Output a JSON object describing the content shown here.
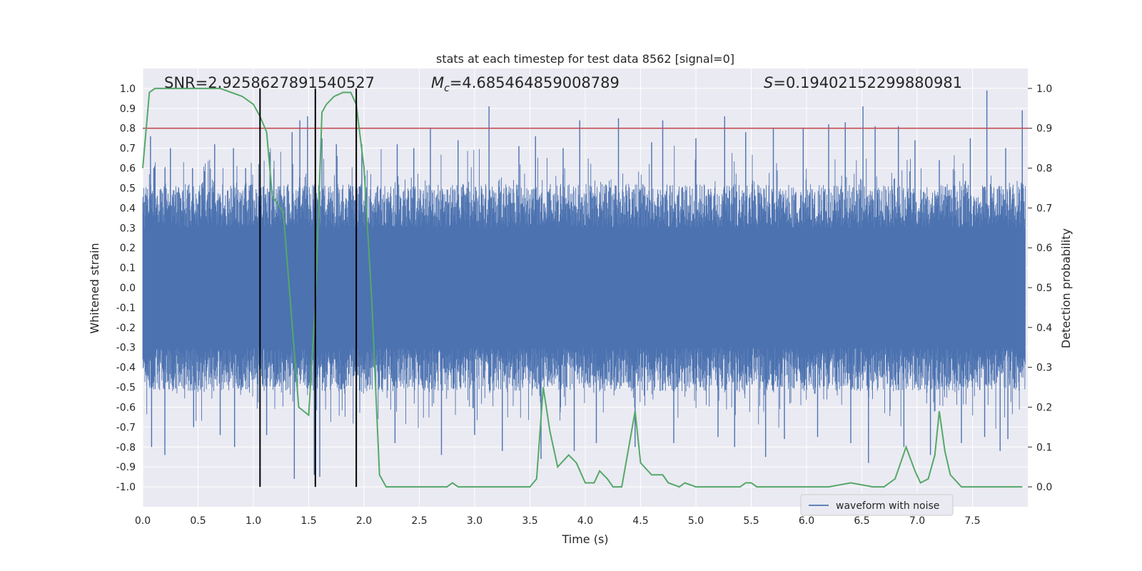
{
  "chart_data": {
    "type": "line",
    "title": "stats at each timestep for test data 8562 [signal=0]",
    "xlabel": "Time (s)",
    "ylabel": "Whitened strain",
    "y2label": "Detection probability",
    "xlim": [
      0.0,
      8.0
    ],
    "ylim": [
      -1.1,
      1.1
    ],
    "y2lim": [
      -0.05,
      1.05
    ],
    "x_ticks": [
      "0.0",
      "0.5",
      "1.0",
      "1.5",
      "2.0",
      "2.5",
      "3.0",
      "3.5",
      "4.0",
      "4.5",
      "5.0",
      "5.5",
      "6.0",
      "6.5",
      "7.0",
      "7.5"
    ],
    "y_ticks": [
      "1.0",
      "0.9",
      "0.8",
      "0.7",
      "0.6",
      "0.5",
      "0.4",
      "0.3",
      "0.2",
      "0.1",
      "0.0",
      "-0.1",
      "-0.2",
      "-0.3",
      "-0.4",
      "-0.5",
      "-0.6",
      "-0.7",
      "-0.8",
      "-0.9",
      "-1.0"
    ],
    "y2_ticks": [
      "1.0",
      "0.9",
      "0.8",
      "0.7",
      "0.6",
      "0.5",
      "0.4",
      "0.3",
      "0.2",
      "0.1",
      "0.0"
    ],
    "grid": true,
    "legend": {
      "position": "bottom-right",
      "entries": [
        "waveform with noise"
      ]
    },
    "annotations": {
      "snr_label": "SNR=2.9258627891540527",
      "mc_symbol": "M",
      "mc_sub": "c",
      "mc_value": "=4.685464859008789",
      "s_symbol": "S",
      "s_value": "=0.19402152299880981"
    },
    "threshold": {
      "axis": "right",
      "value": 0.9,
      "color": "#c44e52"
    },
    "vlines": {
      "x": [
        1.06,
        1.56,
        1.93
      ],
      "color": "#000000"
    },
    "waveform": {
      "name": "waveform with noise",
      "color": "#4c72b0",
      "core_amplitude": 0.3,
      "peak_spikes": [
        [
          0.07,
          0.76
        ],
        [
          0.1,
          0.6
        ],
        [
          0.25,
          0.7
        ],
        [
          0.45,
          0.6
        ],
        [
          0.65,
          0.72
        ],
        [
          0.82,
          0.7
        ],
        [
          0.93,
          0.6
        ],
        [
          1.15,
          0.68
        ],
        [
          1.35,
          0.78
        ],
        [
          1.42,
          0.84
        ],
        [
          1.49,
          0.86
        ],
        [
          1.62,
          0.75
        ],
        [
          1.75,
          0.72
        ],
        [
          1.98,
          0.72
        ],
        [
          2.3,
          0.72
        ],
        [
          2.45,
          0.7
        ],
        [
          2.6,
          0.8
        ],
        [
          2.85,
          0.74
        ],
        [
          3.13,
          0.91
        ],
        [
          3.4,
          0.71
        ],
        [
          3.55,
          0.76
        ],
        [
          3.8,
          0.7
        ],
        [
          3.95,
          0.84
        ],
        [
          4.3,
          0.85
        ],
        [
          4.6,
          0.73
        ],
        [
          4.7,
          0.84
        ],
        [
          5.0,
          0.75
        ],
        [
          5.26,
          0.86
        ],
        [
          5.45,
          0.78
        ],
        [
          5.7,
          0.8
        ],
        [
          5.97,
          0.8
        ],
        [
          6.2,
          0.82
        ],
        [
          6.35,
          0.83
        ],
        [
          6.51,
          0.91
        ],
        [
          6.62,
          0.81
        ],
        [
          6.83,
          0.81
        ],
        [
          6.98,
          0.74
        ],
        [
          7.2,
          0.64
        ],
        [
          7.48,
          0.75
        ],
        [
          7.63,
          0.99
        ],
        [
          7.8,
          0.7
        ],
        [
          7.95,
          0.89
        ]
      ],
      "trough_spikes": [
        [
          0.08,
          -0.8
        ],
        [
          0.2,
          -0.84
        ],
        [
          0.46,
          -0.7
        ],
        [
          0.7,
          -0.74
        ],
        [
          0.83,
          -0.8
        ],
        [
          1.12,
          -0.74
        ],
        [
          1.37,
          -0.96
        ],
        [
          1.55,
          -0.94
        ],
        [
          1.6,
          -0.95
        ],
        [
          1.93,
          -0.88
        ],
        [
          2.28,
          -0.78
        ],
        [
          2.7,
          -0.84
        ],
        [
          3.0,
          -0.74
        ],
        [
          3.25,
          -0.82
        ],
        [
          3.6,
          -0.86
        ],
        [
          3.9,
          -0.82
        ],
        [
          4.1,
          -0.78
        ],
        [
          4.45,
          -0.8
        ],
        [
          4.8,
          -0.78
        ],
        [
          5.2,
          -0.75
        ],
        [
          5.35,
          -0.8
        ],
        [
          5.63,
          -0.85
        ],
        [
          5.8,
          -0.76
        ],
        [
          6.1,
          -0.75
        ],
        [
          6.4,
          -0.78
        ],
        [
          6.56,
          -0.88
        ],
        [
          6.88,
          -0.8
        ],
        [
          7.12,
          -0.84
        ],
        [
          7.4,
          -0.78
        ],
        [
          7.61,
          -0.75
        ],
        [
          7.75,
          -0.82
        ],
        [
          7.82,
          -0.76
        ]
      ]
    },
    "detection_probability": {
      "color": "#55a868",
      "x": [
        0.0,
        0.06,
        0.11,
        0.3,
        0.5,
        0.7,
        0.8,
        0.9,
        1.0,
        1.06,
        1.12,
        1.17,
        1.27,
        1.41,
        1.5,
        1.56,
        1.62,
        1.66,
        1.73,
        1.81,
        1.88,
        1.93,
        2.0,
        2.07,
        2.14,
        2.2,
        2.4,
        2.6,
        2.75,
        2.8,
        2.85,
        2.95,
        3.2,
        3.5,
        3.56,
        3.62,
        3.68,
        3.75,
        3.85,
        3.92,
        4.0,
        4.08,
        4.13,
        4.2,
        4.25,
        4.33,
        4.4,
        4.45,
        4.5,
        4.6,
        4.7,
        4.75,
        4.85,
        4.9,
        5.0,
        5.2,
        5.3,
        5.4,
        5.45,
        5.5,
        5.55,
        5.7,
        5.95,
        6.2,
        6.4,
        6.6,
        6.7,
        6.8,
        6.9,
        6.98,
        7.03,
        7.1,
        7.16,
        7.2,
        7.25,
        7.3,
        7.4,
        7.6,
        7.8,
        7.95
      ],
      "y": [
        0.8,
        0.99,
        1.0,
        1.0,
        1.0,
        1.0,
        0.99,
        0.98,
        0.96,
        0.93,
        0.89,
        0.73,
        0.69,
        0.2,
        0.18,
        0.46,
        0.94,
        0.96,
        0.98,
        0.99,
        0.99,
        0.96,
        0.8,
        0.47,
        0.03,
        0.0,
        0.0,
        0.0,
        0.0,
        0.01,
        0.0,
        0.0,
        0.0,
        0.0,
        0.02,
        0.25,
        0.14,
        0.05,
        0.08,
        0.06,
        0.01,
        0.01,
        0.04,
        0.02,
        0.0,
        0.0,
        0.11,
        0.19,
        0.06,
        0.03,
        0.03,
        0.01,
        0.0,
        0.01,
        0.0,
        0.0,
        0.0,
        0.0,
        0.01,
        0.01,
        0.0,
        0.0,
        0.0,
        0.0,
        0.01,
        0.0,
        0.0,
        0.02,
        0.1,
        0.04,
        0.01,
        0.02,
        0.08,
        0.19,
        0.09,
        0.03,
        0.0,
        0.0,
        0.0,
        0.0
      ]
    }
  }
}
